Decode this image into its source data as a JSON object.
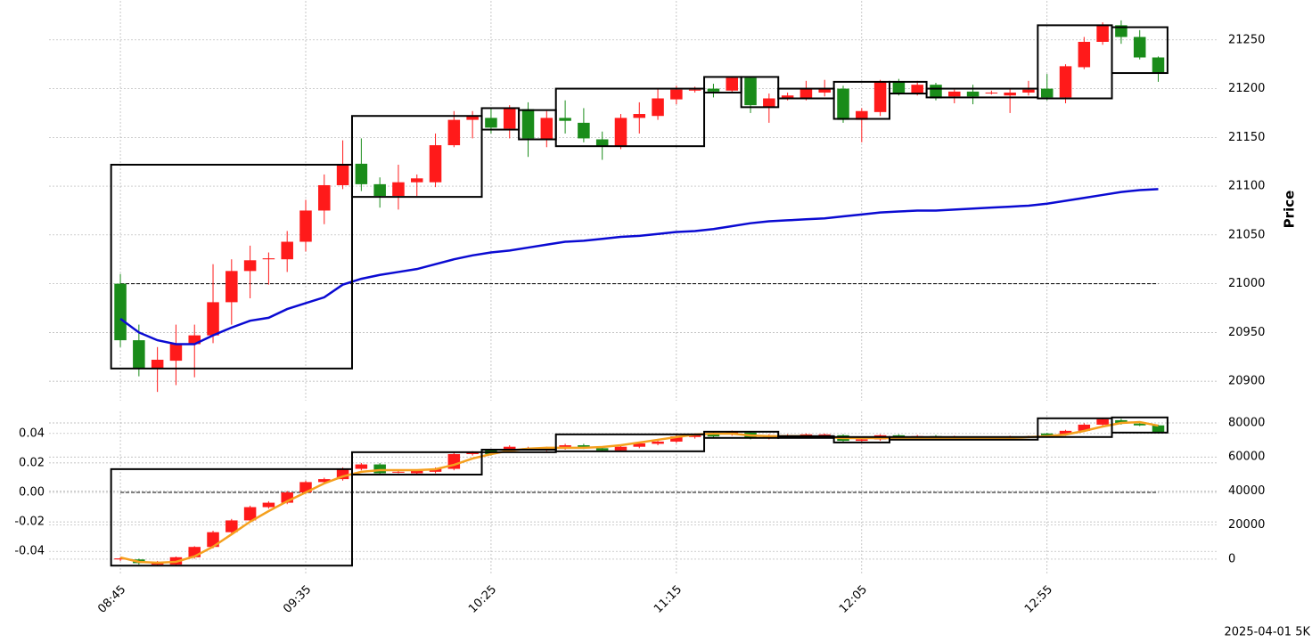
{
  "chart_data": [
    {
      "type": "candlestick",
      "x": [
        0,
        1,
        2,
        3,
        4,
        5,
        6,
        7,
        8,
        9,
        10,
        11,
        12,
        13,
        14,
        15,
        16,
        17,
        18,
        19,
        20,
        21,
        22,
        23,
        24,
        25,
        26,
        27,
        28,
        29,
        30,
        31,
        32,
        33,
        34,
        35,
        36,
        37,
        38,
        39,
        40,
        41,
        42,
        43,
        44,
        45,
        46,
        47,
        48,
        49,
        50,
        51,
        52,
        53,
        54,
        55,
        56
      ],
      "xlim": [
        -3.85,
        59.15
      ],
      "ylim": [
        20880,
        21290
      ],
      "yticks": [
        20900,
        20950,
        21000,
        21050,
        21100,
        21150,
        21200,
        21250
      ],
      "y_label": "Price",
      "grid": true,
      "up_color": "#ff1a1a",
      "down_color": "#1a8c1a",
      "open": [
        21000,
        20942,
        20913,
        20921,
        20938,
        20947,
        20981,
        21013,
        21025,
        21025,
        21043,
        21075,
        21101,
        21123,
        21102,
        21090,
        21104,
        21104,
        21142,
        21168,
        21170,
        21159,
        21179,
        21148,
        21170,
        21165,
        21148,
        21141,
        21170,
        21172,
        21189,
        21198,
        21200,
        21198,
        21211,
        21181,
        21190,
        21190,
        21196,
        21200,
        21168,
        21176,
        21207,
        21195,
        21204,
        21192,
        21197,
        21196,
        21193,
        21196,
        21200,
        21191,
        21222,
        21248,
        21265,
        21253,
        21232
      ],
      "high": [
        21010,
        20958,
        20935,
        20958,
        20958,
        21020,
        21025,
        21039,
        21032,
        21054,
        21086,
        21112,
        21147,
        21149,
        21109,
        21122,
        21112,
        21154,
        21177,
        21177,
        21180,
        21183,
        21186,
        21177,
        21188,
        21180,
        21156,
        21174,
        21186,
        21200,
        21203,
        21202,
        21205,
        21212,
        21212,
        21195,
        21196,
        21208,
        21209,
        21203,
        21180,
        21209,
        21210,
        21208,
        21206,
        21199,
        21204,
        21198,
        21200,
        21208,
        21215,
        21225,
        21253,
        21268,
        21270,
        21260,
        21233
      ],
      "low": [
        20935,
        20905,
        20889,
        20896,
        20904,
        20939,
        20958,
        20985,
        20999,
        21012,
        21033,
        21061,
        21097,
        21095,
        21078,
        21076,
        21090,
        21099,
        21140,
        21149,
        21154,
        21149,
        21130,
        21140,
        21154,
        21145,
        21127,
        21138,
        21154,
        21168,
        21184,
        21196,
        21191,
        21196,
        21175,
        21165,
        21188,
        21188,
        21192,
        21165,
        21145,
        21172,
        21193,
        21193,
        21188,
        21185,
        21184,
        21194,
        21175,
        21193,
        21188,
        21185,
        21220,
        21245,
        21246,
        21230,
        21207
      ],
      "close": [
        20942,
        20913,
        20922,
        20938,
        20947,
        20981,
        21013,
        21024,
        21026,
        21043,
        21075,
        21101,
        21122,
        21102,
        21090,
        21104,
        21108,
        21142,
        21168,
        21172,
        21160,
        21180,
        21149,
        21170,
        21167,
        21149,
        21141,
        21170,
        21174,
        21190,
        21199,
        21199,
        21197,
        21211,
        21183,
        21190,
        21193,
        21200,
        21200,
        21168,
        21177,
        21207,
        21195,
        21204,
        21190,
        21197,
        21192,
        21196,
        21196,
        21199,
        21191,
        21223,
        21248,
        21265,
        21253,
        21232,
        21216
      ],
      "lines": [
        {
          "color": "#0a0ad2",
          "values": [
            20964,
            20950,
            20942,
            20938,
            20938,
            20947,
            20955,
            20962,
            20965,
            20974,
            20980,
            20986,
            20999,
            21005,
            21009,
            21012,
            21015,
            21020,
            21025,
            21029,
            21032,
            21034,
            21037,
            21040,
            21043,
            21044,
            21046,
            21048,
            21049,
            21051,
            21053,
            21054,
            21056,
            21059,
            21062,
            21064,
            21065,
            21066,
            21067,
            21069,
            21071,
            21073,
            21074,
            21075,
            21075,
            21076,
            21077,
            21078,
            21079,
            21080,
            21082,
            21085,
            21088,
            21091,
            21094,
            21096,
            21097
          ]
        }
      ],
      "hline": 21000,
      "boxes": [
        {
          "x0": -0.5,
          "x1": 12.5,
          "high": 21122,
          "low": 20913
        },
        {
          "x0": 12.5,
          "x1": 19.5,
          "high": 21172,
          "low": 21089
        },
        {
          "x0": 19.5,
          "x1": 21.5,
          "high": 21180,
          "low": 21158
        },
        {
          "x0": 21.5,
          "x1": 23.5,
          "high": 21178,
          "low": 21148
        },
        {
          "x0": 23.5,
          "x1": 31.5,
          "high": 21200,
          "low": 21141
        },
        {
          "x0": 31.5,
          "x1": 33.5,
          "high": 21212,
          "low": 21196
        },
        {
          "x0": 33.5,
          "x1": 35.5,
          "high": 21212,
          "low": 21181
        },
        {
          "x0": 35.5,
          "x1": 38.5,
          "high": 21200,
          "low": 21190
        },
        {
          "x0": 38.5,
          "x1": 41.5,
          "high": 21207,
          "low": 21169
        },
        {
          "x0": 41.5,
          "x1": 43.5,
          "high": 21207,
          "low": 21195
        },
        {
          "x0": 43.5,
          "x1": 49.5,
          "high": 21200,
          "low": 21191
        },
        {
          "x0": 49.5,
          "x1": 53.5,
          "high": 21265,
          "low": 21190
        },
        {
          "x0": 53.5,
          "x1": 56.5,
          "high": 21263,
          "low": 21216
        }
      ]
    },
    {
      "type": "candlestick",
      "x": [
        0,
        1,
        2,
        3,
        4,
        5,
        6,
        7,
        8,
        9,
        10,
        11,
        12,
        13,
        14,
        15,
        16,
        17,
        18,
        19,
        20,
        21,
        22,
        23,
        24,
        25,
        26,
        27,
        28,
        29,
        30,
        31,
        32,
        33,
        34,
        35,
        36,
        37,
        38,
        39,
        40,
        41,
        42,
        43,
        44,
        45,
        46,
        47,
        48,
        49,
        50,
        51,
        52,
        53,
        54,
        55,
        56
      ],
      "xlim": [
        -3.85,
        59.15
      ],
      "xticks": [
        {
          "value": 0,
          "label": "08:45"
        },
        {
          "value": 10,
          "label": "09:35"
        },
        {
          "value": 20,
          "label": "10:25"
        },
        {
          "value": 30,
          "label": "11:15"
        },
        {
          "value": 40,
          "label": "12:05"
        },
        {
          "value": 50,
          "label": "12:55"
        }
      ],
      "ylim": [
        -0.055,
        0.055
      ],
      "yticks": [
        -0.04,
        -0.02,
        {
          "value": 0,
          "label": "0.00"
        },
        0.02,
        0.04
      ],
      "y2lim": [
        -8400,
        86800
      ],
      "y2ticks": [
        0,
        20000,
        40000,
        60000,
        80000
      ],
      "grid": true,
      "up_color": "#ff1a1a",
      "down_color": "#1a8c1a",
      "open": [
        -0.0455,
        -0.0455,
        -0.049,
        -0.049,
        -0.044,
        -0.037,
        -0.027,
        -0.019,
        -0.01,
        -0.007,
        0.0,
        0.007,
        0.009,
        0.016,
        0.019,
        0.014,
        0.013,
        0.014,
        0.016,
        0.026,
        0.0285,
        0.028,
        0.03,
        0.029,
        0.0297,
        0.032,
        0.03,
        0.0285,
        0.031,
        0.033,
        0.0345,
        0.0376,
        0.04,
        0.0394,
        0.0406,
        0.037,
        0.038,
        0.038,
        0.0388,
        0.0388,
        0.035,
        0.036,
        0.0388,
        0.0364,
        0.0382,
        0.037,
        0.0376,
        0.0376,
        0.0374,
        0.0376,
        0.04,
        0.0394,
        0.0418,
        0.046,
        0.049,
        0.0467,
        0.0455
      ],
      "high": [
        -0.044,
        -0.045,
        -0.0465,
        -0.0435,
        -0.0365,
        -0.026,
        -0.018,
        -0.009,
        -0.006,
        0.001,
        0.008,
        0.01,
        0.017,
        0.02,
        0.02,
        0.015,
        0.0155,
        0.017,
        0.027,
        0.028,
        0.029,
        0.032,
        0.031,
        0.031,
        0.033,
        0.033,
        0.031,
        0.032,
        0.034,
        0.0355,
        0.039,
        0.04,
        0.041,
        0.042,
        0.041,
        0.0395,
        0.0395,
        0.04,
        0.04,
        0.0395,
        0.037,
        0.0395,
        0.0395,
        0.039,
        0.039,
        0.0385,
        0.038,
        0.038,
        0.0385,
        0.0385,
        0.0405,
        0.0425,
        0.047,
        0.0505,
        0.05,
        0.0475,
        0.046
      ],
      "low": [
        -0.0465,
        -0.049,
        -0.05,
        -0.05,
        -0.045,
        -0.038,
        -0.028,
        -0.02,
        -0.011,
        -0.008,
        -0.001,
        0.006,
        0.008,
        0.015,
        0.012,
        0.013,
        0.012,
        0.013,
        0.015,
        0.025,
        0.025,
        0.027,
        0.029,
        0.028,
        0.029,
        0.0295,
        0.0275,
        0.0275,
        0.03,
        0.032,
        0.0335,
        0.0365,
        0.037,
        0.0385,
        0.036,
        0.036,
        0.037,
        0.037,
        0.038,
        0.034,
        0.034,
        0.035,
        0.0355,
        0.0355,
        0.036,
        0.036,
        0.0365,
        0.037,
        0.0365,
        0.037,
        0.038,
        0.0385,
        0.041,
        0.045,
        0.046,
        0.045,
        0.04
      ],
      "close": [
        -0.0448,
        -0.048,
        -0.0473,
        -0.044,
        -0.037,
        -0.027,
        -0.019,
        -0.01,
        -0.007,
        0.0,
        0.007,
        0.009,
        0.016,
        0.019,
        0.013,
        0.014,
        0.0145,
        0.016,
        0.026,
        0.027,
        0.026,
        0.031,
        0.03,
        0.03,
        0.032,
        0.0303,
        0.0285,
        0.031,
        0.0333,
        0.0345,
        0.038,
        0.0394,
        0.038,
        0.0412,
        0.037,
        0.0388,
        0.0388,
        0.0394,
        0.0394,
        0.035,
        0.036,
        0.0388,
        0.0364,
        0.0382,
        0.037,
        0.038,
        0.037,
        0.0376,
        0.0378,
        0.038,
        0.0388,
        0.0418,
        0.046,
        0.0497,
        0.0467,
        0.0455,
        0.0406
      ],
      "lines": [
        {
          "color": "#f5a01e",
          "axis": "y2",
          "values": [
            1000,
            -1600,
            -2100,
            -1600,
            1600,
            7300,
            14600,
            22000,
            28200,
            34000,
            39200,
            44500,
            48600,
            51300,
            52300,
            52300,
            52300,
            52800,
            55400,
            59100,
            61700,
            63800,
            64900,
            65400,
            65400,
            65400,
            65900,
            66900,
            68500,
            70100,
            71700,
            73200,
            73700,
            73700,
            72700,
            72200,
            72200,
            72200,
            71700,
            71100,
            71100,
            71100,
            71100,
            71100,
            71100,
            71100,
            71100,
            71100,
            71100,
            71700,
            72200,
            73200,
            75300,
            77900,
            80000,
            80500,
            78400
          ]
        }
      ],
      "hline": 0,
      "boxes": [
        {
          "x0": -0.5,
          "x1": 12.5,
          "high": 0.0158,
          "low": -0.0497
        },
        {
          "x0": 12.5,
          "x1": 19.5,
          "high": 0.0273,
          "low": 0.0121
        },
        {
          "x0": 19.5,
          "x1": 23.5,
          "high": 0.029,
          "low": 0.0273
        },
        {
          "x0": 23.5,
          "x1": 31.5,
          "high": 0.0394,
          "low": 0.0279
        },
        {
          "x0": 31.5,
          "x1": 35.5,
          "high": 0.0412,
          "low": 0.037
        },
        {
          "x0": 35.5,
          "x1": 38.5,
          "high": 0.0382,
          "low": 0.037
        },
        {
          "x0": 38.5,
          "x1": 41.5,
          "high": 0.0376,
          "low": 0.0339
        },
        {
          "x0": 41.5,
          "x1": 49.5,
          "high": 0.0376,
          "low": 0.0358
        },
        {
          "x0": 49.5,
          "x1": 53.5,
          "high": 0.0503,
          "low": 0.0376
        },
        {
          "x0": 53.5,
          "x1": 56.5,
          "high": 0.0509,
          "low": 0.0406
        }
      ]
    }
  ],
  "footnote": "2025-04-01 5K"
}
